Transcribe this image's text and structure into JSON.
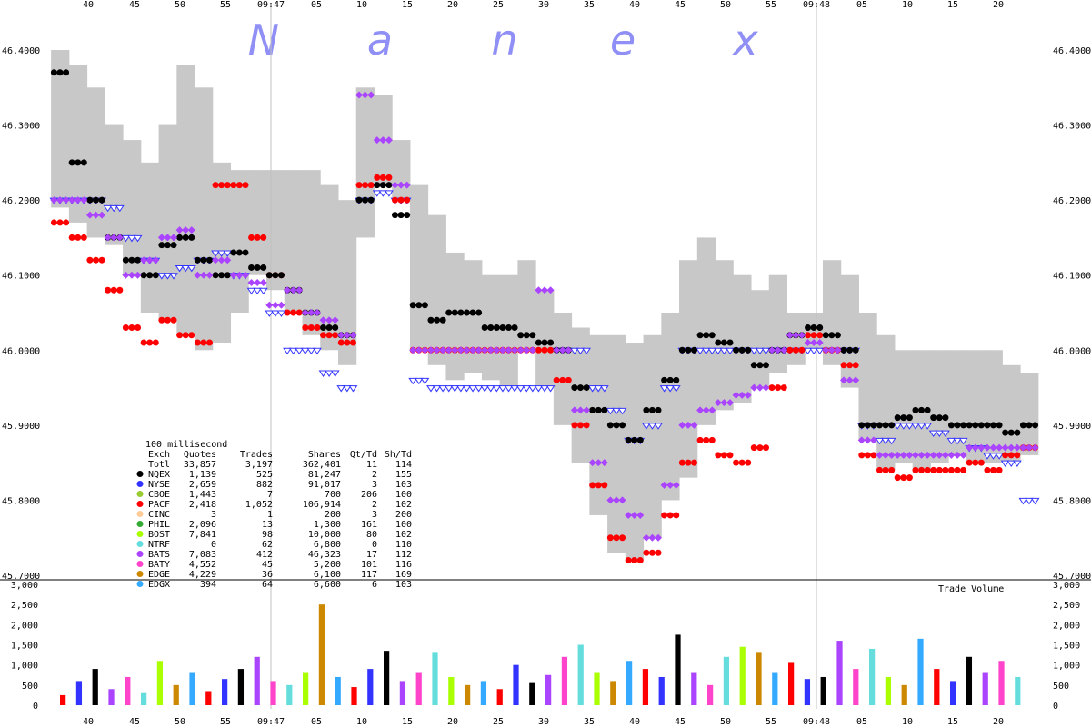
{
  "chart_data": [
    {
      "type": "scatter",
      "title": "",
      "watermark": [
        "N",
        "a",
        "n",
        "e",
        "x"
      ],
      "watermark_color": "#8f8ff5",
      "xlabel": "",
      "ylabel": "",
      "x_tick_labels": [
        "40",
        "45",
        "50",
        "55",
        "09:47",
        "05",
        "10",
        "15",
        "20",
        "25",
        "30",
        "35",
        "40",
        "45",
        "50",
        "55",
        "09:48",
        "05",
        "10",
        "15",
        "20"
      ],
      "y_tick_labels": [
        "46.4000",
        "46.3000",
        "46.2000",
        "46.1000",
        "46.0000",
        "45.9000",
        "45.8000",
        "45.7000"
      ],
      "ylim": [
        45.7,
        46.4
      ],
      "nbbo_band_color": "#c8c8c8",
      "grid": "vertical lines at 09:47 and 09:48",
      "summary_table": {
        "interval": "100 millisecond",
        "headers": [
          "Exch",
          "Quotes",
          "Trades",
          "Shares",
          "Qt/Td",
          "Sh/Td"
        ],
        "rows": [
          {
            "exch": "Totl",
            "quotes": "33,857",
            "trades": "3,197",
            "shares": "362,401",
            "qt_td": "11",
            "sh_td": "114",
            "color": ""
          },
          {
            "exch": "NQEX",
            "quotes": "1,139",
            "trades": "525",
            "shares": "81,247",
            "qt_td": "2",
            "sh_td": "155",
            "color": "#000000"
          },
          {
            "exch": "NYSE",
            "quotes": "2,659",
            "trades": "882",
            "shares": "91,017",
            "qt_td": "3",
            "sh_td": "103",
            "color": "#3333ff"
          },
          {
            "exch": "CBOE",
            "quotes": "1,443",
            "trades": "7",
            "shares": "700",
            "qt_td": "206",
            "sh_td": "100",
            "color": "#99cc33"
          },
          {
            "exch": "PACF",
            "quotes": "2,418",
            "trades": "1,052",
            "shares": "106,914",
            "qt_td": "2",
            "sh_td": "102",
            "color": "#ff0000"
          },
          {
            "exch": "CINC",
            "quotes": "3",
            "trades": "1",
            "shares": "200",
            "qt_td": "3",
            "sh_td": "200",
            "color": "#ffcc99"
          },
          {
            "exch": "PHIL",
            "quotes": "2,096",
            "trades": "13",
            "shares": "1,300",
            "qt_td": "161",
            "sh_td": "100",
            "color": "#33aa33"
          },
          {
            "exch": "BOST",
            "quotes": "7,841",
            "trades": "98",
            "shares": "10,000",
            "qt_td": "80",
            "sh_td": "102",
            "color": "#aaff00"
          },
          {
            "exch": "NTRF",
            "quotes": "0",
            "trades": "62",
            "shares": "6,800",
            "qt_td": "0",
            "sh_td": "110",
            "color": "#66dddd"
          },
          {
            "exch": "BATS",
            "quotes": "7,083",
            "trades": "412",
            "shares": "46,323",
            "qt_td": "17",
            "sh_td": "112",
            "color": "#aa44ff"
          },
          {
            "exch": "BATY",
            "quotes": "4,552",
            "trades": "45",
            "shares": "5,200",
            "qt_td": "101",
            "sh_td": "116",
            "color": "#ff44cc"
          },
          {
            "exch": "EDGE",
            "quotes": "4,229",
            "trades": "36",
            "shares": "6,100",
            "qt_td": "117",
            "sh_td": "169",
            "color": "#cc8800"
          },
          {
            "exch": "EDGX",
            "quotes": "394",
            "trades": "64",
            "shares": "6,600",
            "qt_td": "6",
            "sh_td": "103",
            "color": "#33aaff"
          }
        ]
      },
      "series": [
        {
          "name": "NBBO band low",
          "color": "#c8c8c8",
          "y": [
            46.19,
            46.17,
            46.15,
            46.14,
            46.1,
            46.05,
            46.04,
            46.02,
            46.0,
            46.01,
            46.05,
            46.1,
            46.08,
            46.05,
            46.02,
            46.0,
            45.98,
            46.15,
            46.22,
            46.2,
            46.0,
            45.98,
            45.96,
            45.97,
            45.96,
            45.95,
            46.0,
            45.95,
            45.9,
            45.85,
            45.78,
            45.73,
            45.72,
            45.75,
            45.8,
            45.83,
            45.9,
            45.92,
            45.93,
            45.95,
            45.97,
            45.98,
            46.0,
            45.98,
            45.95,
            45.88,
            45.84,
            45.85,
            45.84,
            45.85,
            45.86,
            45.85,
            45.85,
            45.85,
            45.86
          ]
        },
        {
          "name": "NBBO band high",
          "color": "#c8c8c8",
          "y": [
            46.4,
            46.38,
            46.35,
            46.3,
            46.28,
            46.25,
            46.3,
            46.38,
            46.35,
            46.25,
            46.24,
            46.24,
            46.24,
            46.24,
            46.24,
            46.22,
            46.2,
            46.35,
            46.34,
            46.28,
            46.22,
            46.18,
            46.13,
            46.12,
            46.1,
            46.1,
            46.12,
            46.08,
            46.05,
            46.03,
            46.02,
            46.02,
            46.01,
            46.02,
            46.05,
            46.12,
            46.15,
            46.12,
            46.1,
            46.08,
            46.1,
            46.05,
            46.05,
            46.12,
            46.1,
            46.05,
            46.02,
            46.0,
            46.0,
            46.0,
            46.0,
            46.0,
            46.0,
            45.98,
            45.97
          ]
        },
        {
          "name": "NYSE quotes",
          "color": "#3333ff",
          "y": [
            46.2,
            46.2,
            46.2,
            46.19,
            46.15,
            46.12,
            46.1,
            46.11,
            46.12,
            46.13,
            46.1,
            46.08,
            46.05,
            46.0,
            46.0,
            45.97,
            45.95,
            46.2,
            46.21,
            46.2,
            45.96,
            45.95,
            45.95,
            45.95,
            45.95,
            45.95,
            45.95,
            45.95,
            46.0,
            46.0,
            45.95,
            45.92,
            45.88,
            45.9,
            45.95,
            46.0,
            46.0,
            46.0,
            46.0,
            46.0,
            46.0,
            46.0,
            46.0,
            46.0,
            46.0,
            45.9,
            45.88,
            45.9,
            45.9,
            45.89,
            45.88,
            45.87,
            45.86,
            45.85,
            45.8
          ]
        },
        {
          "name": "PACF quotes",
          "color": "#ff0000",
          "y": [
            46.17,
            46.15,
            46.12,
            46.08,
            46.03,
            46.01,
            46.04,
            46.02,
            46.01,
            46.22,
            46.22,
            46.15,
            46.1,
            46.05,
            46.03,
            46.02,
            46.01,
            46.22,
            46.23,
            46.2,
            46.0,
            46.0,
            46.0,
            46.0,
            46.0,
            46.0,
            46.0,
            46.0,
            45.96,
            45.9,
            45.82,
            45.75,
            45.72,
            45.73,
            45.78,
            45.85,
            45.88,
            45.86,
            45.85,
            45.87,
            45.95,
            46.0,
            46.02,
            46.0,
            45.98,
            45.86,
            45.84,
            45.83,
            45.84,
            45.84,
            45.84,
            45.85,
            45.84,
            45.86,
            45.87
          ]
        },
        {
          "name": "NQEX quotes",
          "color": "#000000",
          "y": [
            46.37,
            46.25,
            46.2,
            46.15,
            46.12,
            46.1,
            46.14,
            46.15,
            46.12,
            46.1,
            46.13,
            46.11,
            46.1,
            46.08,
            46.05,
            46.03,
            46.02,
            46.2,
            46.22,
            46.18,
            46.06,
            46.04,
            46.05,
            46.05,
            46.03,
            46.03,
            46.02,
            46.01,
            46.0,
            45.95,
            45.92,
            45.9,
            45.88,
            45.92,
            45.96,
            46.0,
            46.02,
            46.01,
            46.0,
            45.98,
            46.0,
            46.02,
            46.03,
            46.02,
            46.0,
            45.9,
            45.9,
            45.91,
            45.92,
            45.91,
            45.9,
            45.9,
            45.9,
            45.89,
            45.9
          ]
        },
        {
          "name": "BATS quotes",
          "color": "#aa44ff",
          "y": [
            46.2,
            46.2,
            46.18,
            46.15,
            46.1,
            46.12,
            46.15,
            46.16,
            46.1,
            46.12,
            46.1,
            46.09,
            46.06,
            46.08,
            46.05,
            46.04,
            46.02,
            46.34,
            46.28,
            46.22,
            46.0,
            46.0,
            46.0,
            46.0,
            46.0,
            46.0,
            46.0,
            46.08,
            46.0,
            45.92,
            45.85,
            45.8,
            45.78,
            45.75,
            45.82,
            45.9,
            45.92,
            45.93,
            45.94,
            45.95,
            46.0,
            46.02,
            46.01,
            46.0,
            45.96,
            45.88,
            45.86,
            45.86,
            45.86,
            45.86,
            45.86,
            45.87,
            45.87,
            45.87,
            45.87
          ]
        }
      ]
    },
    {
      "type": "bar",
      "title": "Trade Volume",
      "xlabel": "",
      "ylabel": "",
      "y_tick_labels": [
        "0",
        "500",
        "1,000",
        "1,500",
        "2,000",
        "2,500",
        "3,000"
      ],
      "ylim": [
        0,
        3000
      ],
      "colors": [
        "#ff0000",
        "#3333ff",
        "#000000",
        "#aa44ff",
        "#ff44cc",
        "#66dddd",
        "#aaff00",
        "#cc8800",
        "#33aaff"
      ],
      "values": [
        250,
        600,
        900,
        400,
        700,
        300,
        1100,
        500,
        800,
        350,
        650,
        900,
        1200,
        600,
        500,
        800,
        2500,
        700,
        450,
        900,
        1350,
        600,
        800,
        1300,
        700,
        500,
        600,
        400,
        1000,
        550,
        750,
        1200,
        1500,
        800,
        600,
        1100,
        900,
        700,
        1750,
        800,
        500,
        1200,
        1450,
        1300,
        800,
        1050,
        650,
        700,
        1600,
        900,
        1400,
        700,
        500,
        1650,
        900,
        600,
        1200,
        800,
        1100,
        700
      ]
    }
  ]
}
